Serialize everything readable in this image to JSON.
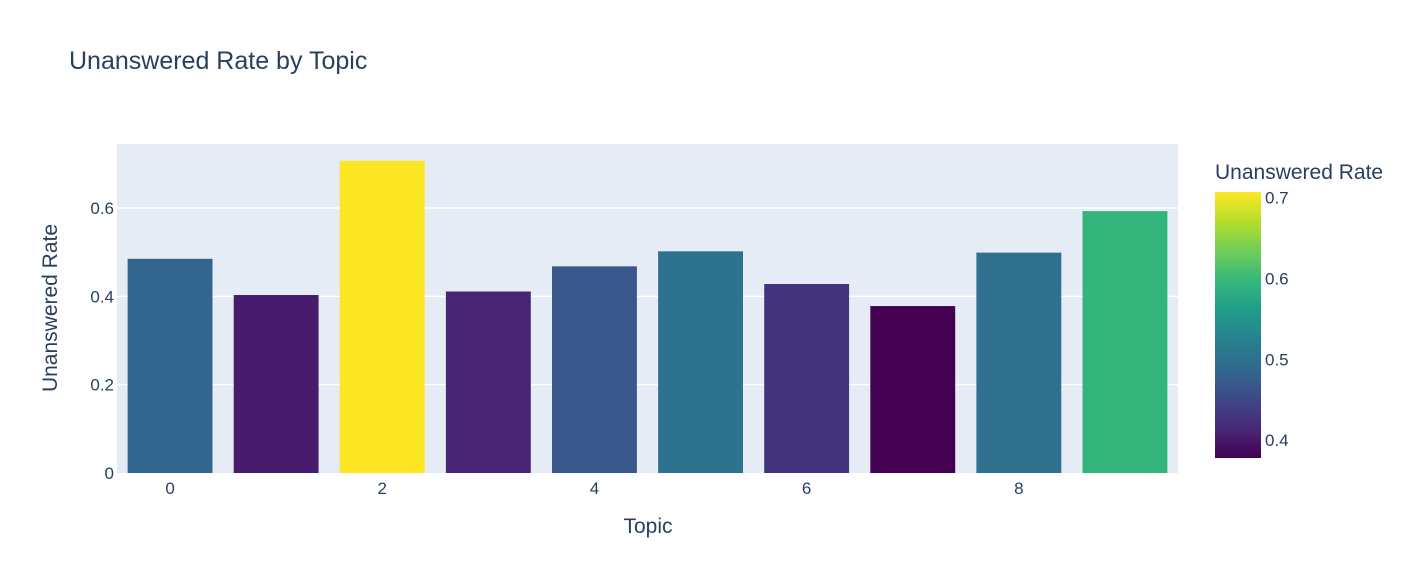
{
  "chart_data": {
    "type": "bar",
    "title": "Unanswered Rate by Topic",
    "xlabel": "Topic",
    "ylabel": "Unanswered Rate",
    "x": [
      0,
      1,
      2,
      3,
      4,
      5,
      6,
      7,
      8,
      9
    ],
    "values": [
      0.485,
      0.403,
      0.707,
      0.411,
      0.468,
      0.502,
      0.428,
      0.378,
      0.499,
      0.593
    ],
    "x_ticks": [
      "0",
      "2",
      "4",
      "6",
      "8"
    ],
    "y_ticks": [
      "0",
      "0.2",
      "0.4",
      "0.6"
    ],
    "xlim": [
      -0.5,
      9.5
    ],
    "ylim": [
      0,
      0.745
    ],
    "grid": true,
    "colorbar": {
      "title": "Unanswered Rate",
      "range": [
        0.378,
        0.707
      ],
      "ticks": [
        "0.4",
        "0.5",
        "0.6",
        "0.7"
      ],
      "colorscale": "Viridis"
    },
    "colors": {
      "plot_background": "#e5ecf6",
      "grid": "#ffffff",
      "text": "#2a3f5f"
    }
  }
}
